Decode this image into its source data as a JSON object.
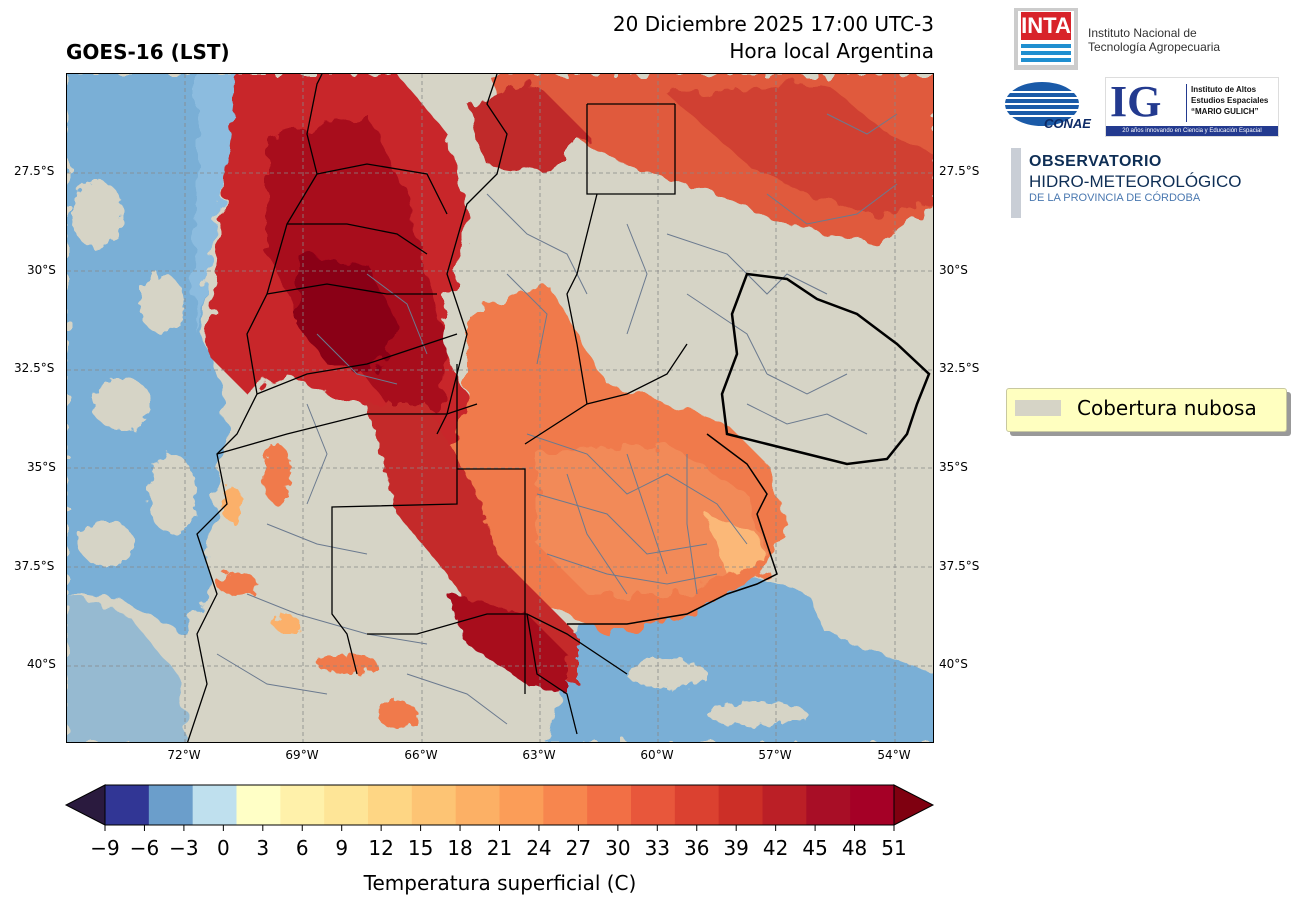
{
  "header": {
    "product": "GOES-16 (LST)",
    "datetime": "20 Diciembre 2025 17:00 UTC-3",
    "timezone_note": "Hora local Argentina"
  },
  "axes": {
    "y_ticks": [
      "27.5°S",
      "30°S",
      "32.5°S",
      "35°S",
      "37.5°S",
      "40°S"
    ],
    "x_ticks": [
      "72°W",
      "69°W",
      "66°W",
      "63°W",
      "60°W",
      "57°W",
      "54°W"
    ]
  },
  "legend": {
    "cloud_label": "Cobertura nubosa",
    "cloud_color": "#d6d4c6"
  },
  "colorbar": {
    "label": "Temperatura superficial (C)",
    "ticks": [
      "−9",
      "−6",
      "−3",
      "0",
      "3",
      "6",
      "9",
      "12",
      "15",
      "18",
      "21",
      "24",
      "27",
      "30",
      "33",
      "36",
      "39",
      "42",
      "45",
      "48",
      "51"
    ],
    "under_color": "#2a1a3e",
    "over_color": "#7f0010",
    "colors": [
      "#313695",
      "#6b9ecb",
      "#bfe0ee",
      "#ffffc6",
      "#fff1aa",
      "#fee597",
      "#fed684",
      "#fdc474",
      "#fcb065",
      "#fb9d58",
      "#f7864e",
      "#f26f45",
      "#e8573b",
      "#db4130",
      "#cc2f27",
      "#bb1f26",
      "#a80e26",
      "#a50026"
    ]
  },
  "logos": {
    "inta_mark": "INTA",
    "inta_name_1": "Instituto Nacional de",
    "inta_name_2": "Tecnología Agropecuaria",
    "conae": "CONAE",
    "ig_mark": "IG",
    "ig_line1": "Instituto de Altos",
    "ig_line2": "Estudios Espaciales",
    "ig_line3": "“MARIO GULICH”",
    "ig_footer": "20 años innovando en Ciencia y Educación Espacial",
    "obs_line1": "OBSERVATORIO",
    "obs_line2": "HIDRO-METEOROLÓGICO",
    "obs_line3": "DE LA PROVINCIA DE CÓRDOBA"
  }
}
